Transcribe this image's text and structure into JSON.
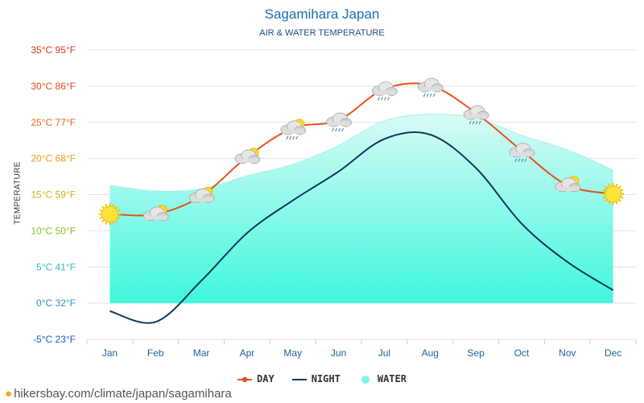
{
  "title": "Sagamihara Japan",
  "subtitle": "AIR & WATER TEMPERATURE",
  "footer": "hikersbay.com/climate/japan/sagamihara",
  "legend": {
    "day": "DAY",
    "night": "NIGHT",
    "water": "WATER"
  },
  "colors": {
    "day": "#e8521c",
    "night": "#0e3a5c",
    "water_fill": "#3ff7dc",
    "water_top": "#d8fbf6",
    "title": "#1a6fb5"
  },
  "chart_data": {
    "type": "line",
    "categories": [
      "Jan",
      "Feb",
      "Mar",
      "Apr",
      "May",
      "Jun",
      "Jul",
      "Aug",
      "Sep",
      "Oct",
      "Nov",
      "Dec"
    ],
    "series": [
      {
        "name": "DAY",
        "values": [
          12.3,
          12.3,
          14.8,
          20.2,
          24.2,
          25.3,
          29.6,
          30.1,
          26.3,
          21.1,
          16.3,
          15.1
        ]
      },
      {
        "name": "NIGHT",
        "values": [
          -1.1,
          -2.6,
          3.1,
          9.7,
          14.2,
          18.2,
          22.7,
          23.3,
          18.7,
          11.0,
          5.7,
          1.8
        ]
      },
      {
        "name": "WATER",
        "values": [
          16.3,
          15.5,
          15.8,
          17.6,
          19.2,
          21.8,
          25.2,
          26.1,
          25.6,
          23.2,
          21.2,
          18.4
        ]
      }
    ],
    "weather_icons": [
      "sun",
      "partly-cloudy",
      "partly-cloudy",
      "partly-cloudy",
      "partly-cloudy-rain",
      "cloud-rain",
      "cloud-rain",
      "cloud-rain",
      "cloud-rain",
      "cloud-rain",
      "partly-cloudy",
      "sun"
    ],
    "ylim": [
      -5,
      35
    ],
    "yticks": [
      {
        "label": "35°C 95°F",
        "value": 35,
        "color": "#d9371a"
      },
      {
        "label": "30°C 86°F",
        "value": 30,
        "color": "#e0481c"
      },
      {
        "label": "25°C 77°F",
        "value": 25,
        "color": "#e86a1a"
      },
      {
        "label": "20°C 68°F",
        "value": 20,
        "color": "#e8a017"
      },
      {
        "label": "15°C 59°F",
        "value": 15,
        "color": "#d6ad12"
      },
      {
        "label": "10°C 50°F",
        "value": 10,
        "color": "#8cc02a"
      },
      {
        "label": "5°C 41°F",
        "value": 5,
        "color": "#3bb6c9"
      },
      {
        "label": "0°C 32°F",
        "value": 0,
        "color": "#2d8fd0"
      },
      {
        "label": "-5°C 23°F",
        "value": -5,
        "color": "#1a5fb4"
      }
    ],
    "ylabel": "TEMPERATURE",
    "grid": true,
    "legend_position": "bottom-center"
  }
}
